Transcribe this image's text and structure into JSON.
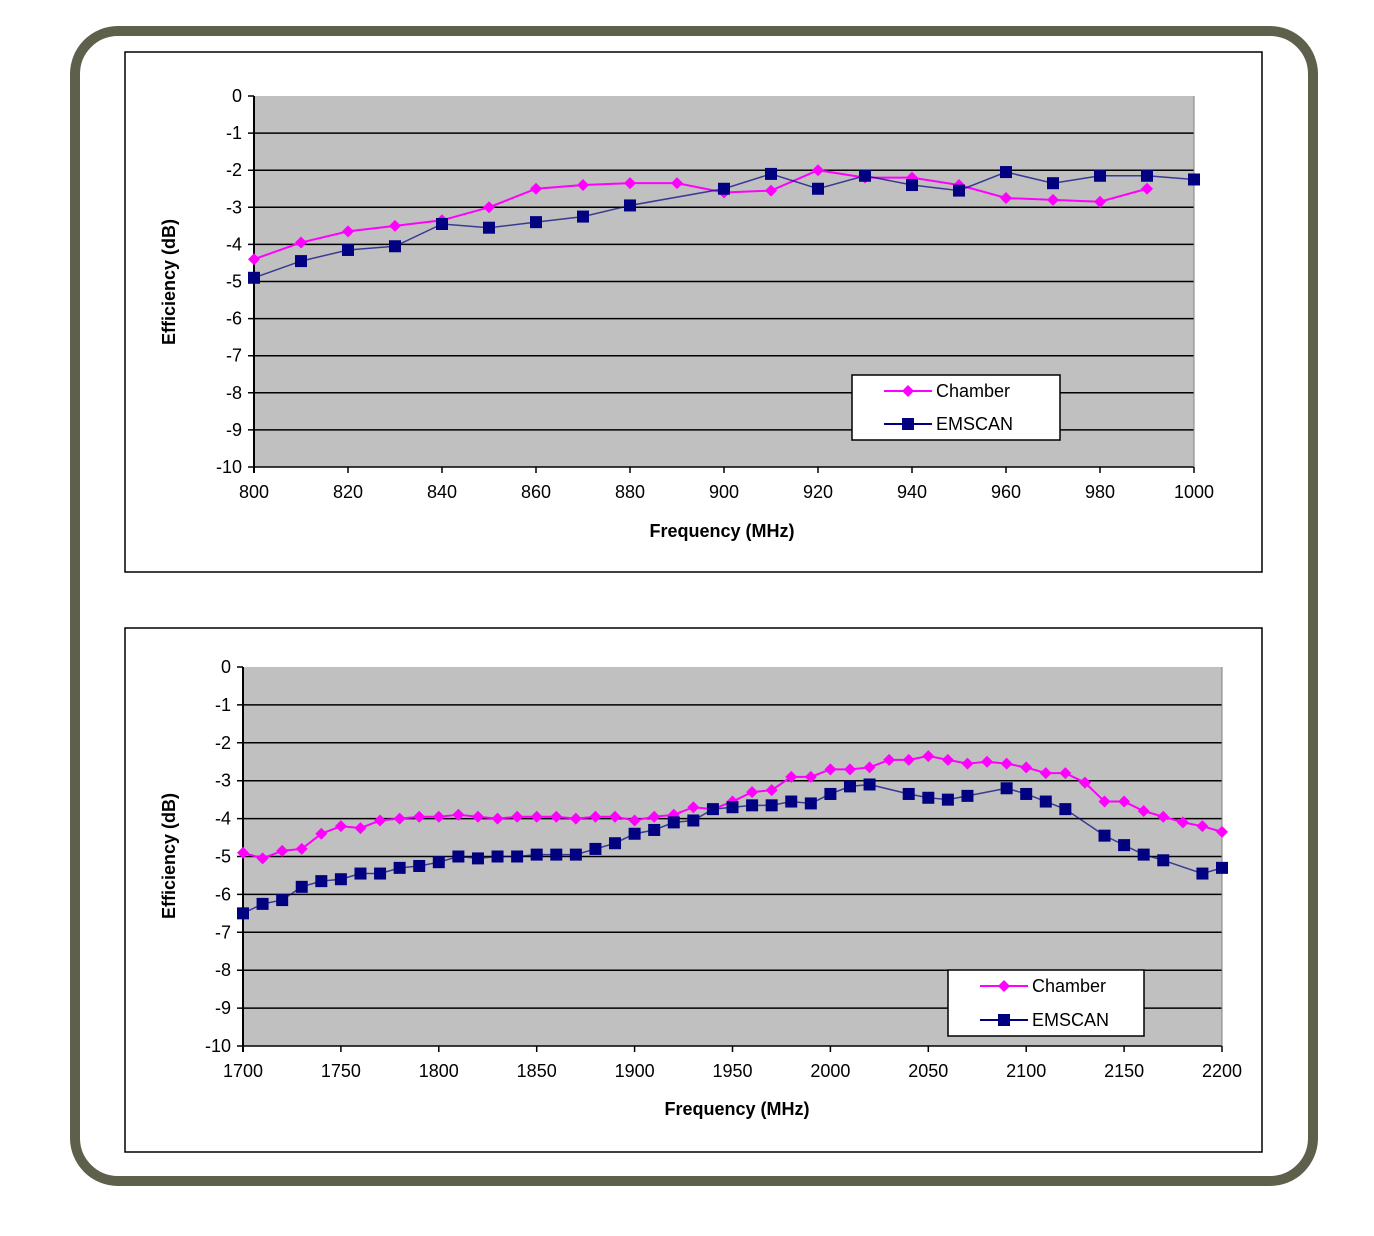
{
  "chart_data": [
    {
      "type": "line",
      "title": "",
      "xlabel": "Frequency (MHz)",
      "ylabel": "Efficiency (dB)",
      "xlim": [
        800,
        1000
      ],
      "ylim": [
        -10,
        0
      ],
      "xticks": [
        800,
        820,
        840,
        860,
        880,
        900,
        920,
        940,
        960,
        980,
        1000
      ],
      "yticks": [
        0,
        -1,
        -2,
        -3,
        -4,
        -5,
        -6,
        -7,
        -8,
        -9,
        -10
      ],
      "grid": "horizontal",
      "legend": "bottom-right",
      "x": [
        800,
        810,
        820,
        830,
        840,
        850,
        860,
        870,
        880,
        890,
        900,
        910,
        920,
        930,
        940,
        950,
        960,
        970,
        980,
        990,
        1000
      ],
      "series": [
        {
          "name": "Chamber",
          "color": "#ff00ff",
          "marker": "diamond",
          "values": [
            -4.4,
            -3.95,
            -3.65,
            -3.5,
            -3.35,
            -3.0,
            -2.5,
            -2.4,
            -2.35,
            -2.35,
            -2.6,
            -2.55,
            -2.0,
            -2.2,
            -2.2,
            -2.4,
            -2.75,
            -2.8,
            -2.85,
            -2.5,
            null
          ]
        },
        {
          "name": "EMSCAN",
          "color": "#000080",
          "marker": "square",
          "values": [
            -4.9,
            -4.45,
            -4.15,
            -4.05,
            -3.45,
            -3.55,
            -3.4,
            -3.25,
            -2.95,
            null,
            -2.5,
            -2.1,
            -2.5,
            -2.15,
            -2.4,
            -2.55,
            -2.05,
            -2.35,
            -2.15,
            -2.15,
            -2.25
          ]
        }
      ]
    },
    {
      "type": "line",
      "title": "",
      "xlabel": "Frequency (MHz)",
      "ylabel": "Efficiency (dB)",
      "xlim": [
        1700,
        2200
      ],
      "ylim": [
        -10,
        0
      ],
      "xticks": [
        1700,
        1750,
        1800,
        1850,
        1900,
        1950,
        2000,
        2050,
        2100,
        2150,
        2200
      ],
      "yticks": [
        0,
        -1,
        -2,
        -3,
        -4,
        -5,
        -6,
        -7,
        -8,
        -9,
        -10
      ],
      "grid": "horizontal",
      "legend": "bottom-right",
      "x": [
        1700,
        1710,
        1720,
        1730,
        1740,
        1750,
        1760,
        1770,
        1780,
        1790,
        1800,
        1810,
        1820,
        1830,
        1840,
        1850,
        1860,
        1870,
        1880,
        1890,
        1900,
        1910,
        1920,
        1930,
        1940,
        1950,
        1960,
        1970,
        1980,
        1990,
        2000,
        2010,
        2020,
        2030,
        2040,
        2050,
        2060,
        2070,
        2080,
        2090,
        2100,
        2110,
        2120,
        2130,
        2140,
        2150,
        2160,
        2170,
        2180,
        2190,
        2200
      ],
      "series": [
        {
          "name": "Chamber",
          "color": "#ff00ff",
          "marker": "diamond",
          "values": [
            -4.9,
            -5.05,
            -4.85,
            -4.8,
            -4.4,
            -4.2,
            -4.25,
            -4.05,
            -4.0,
            -3.95,
            -3.95,
            -3.9,
            -3.95,
            -4.0,
            -3.95,
            -3.95,
            -3.95,
            -4.0,
            -3.95,
            -3.95,
            -4.05,
            -3.95,
            -3.9,
            -3.7,
            -3.75,
            -3.55,
            -3.3,
            -3.25,
            -2.9,
            -2.9,
            -2.7,
            -2.7,
            -2.65,
            -2.45,
            -2.45,
            -2.35,
            -2.45,
            -2.55,
            -2.5,
            -2.55,
            -2.65,
            -2.8,
            -2.8,
            -3.05,
            -3.55,
            -3.55,
            -3.8,
            -3.95,
            -4.1,
            -4.2,
            -4.35
          ]
        },
        {
          "name": "EMSCAN",
          "color": "#000080",
          "marker": "square",
          "values": [
            -6.5,
            -6.25,
            -6.15,
            -5.8,
            -5.65,
            -5.6,
            -5.45,
            -5.45,
            -5.3,
            -5.25,
            -5.15,
            -5.0,
            -5.05,
            -5.0,
            -5.0,
            -4.95,
            -4.95,
            -4.95,
            -4.8,
            -4.65,
            -4.4,
            -4.3,
            -4.1,
            -4.05,
            -3.75,
            -3.7,
            -3.65,
            -3.65,
            -3.55,
            -3.6,
            -3.35,
            -3.15,
            -3.1,
            null,
            -3.35,
            -3.45,
            -3.5,
            -3.4,
            null,
            -3.2,
            -3.35,
            -3.55,
            -3.75,
            null,
            -4.45,
            -4.7,
            -4.95,
            -5.1,
            null,
            -5.45,
            -5.3
          ]
        }
      ]
    }
  ]
}
